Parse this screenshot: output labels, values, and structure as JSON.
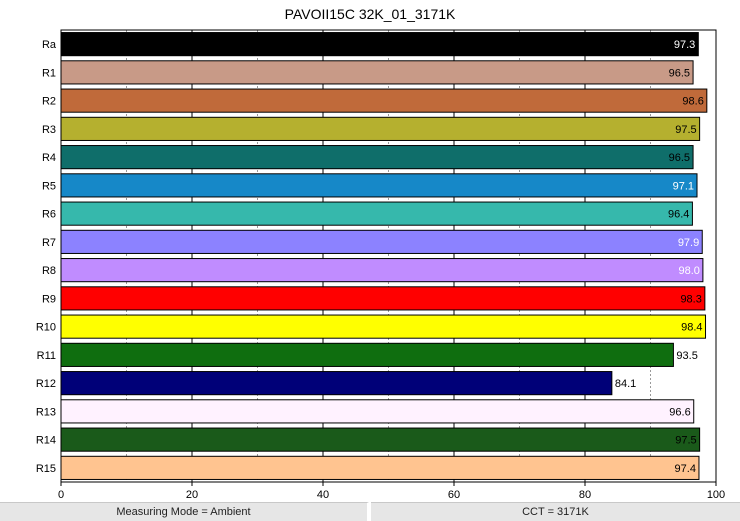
{
  "chart_data": {
    "type": "bar",
    "orientation": "horizontal",
    "title": "PAVOII15C 32K_01_3171K",
    "xlabel": "",
    "ylabel": "",
    "xlim": [
      0,
      100
    ],
    "x_ticks": [
      0,
      20,
      40,
      60,
      80,
      100
    ],
    "grid": "vertical",
    "categories": [
      "Ra",
      "R1",
      "R2",
      "R3",
      "R4",
      "R5",
      "R6",
      "R7",
      "R8",
      "R9",
      "R10",
      "R11",
      "R12",
      "R13",
      "R14",
      "R15"
    ],
    "values": [
      97.3,
      96.5,
      98.6,
      97.5,
      96.5,
      97.1,
      96.4,
      97.9,
      98.0,
      98.3,
      98.4,
      93.5,
      84.1,
      96.6,
      97.5,
      97.4
    ],
    "labels": [
      "97.3",
      "96.5",
      "98.6",
      "97.5",
      "96.5",
      "97.1",
      "96.4",
      "97.9",
      "98.0",
      "98.3",
      "98.4",
      "93.5",
      "84.1",
      "96.6",
      "97.5",
      "97.4"
    ],
    "colors": [
      "#000000",
      "#c89a87",
      "#c06a3a",
      "#b5b02f",
      "#0f6e6a",
      "#1688c8",
      "#36b8ac",
      "#8c82ff",
      "#c08cff",
      "#ff0000",
      "#ffff00",
      "#0f6e0f",
      "#000078",
      "#fff2ff",
      "#1a5a1a",
      "#ffc490"
    ],
    "label_colors": [
      "#ffffff",
      "#000000",
      "#000000",
      "#000000",
      "#000000",
      "#ffffff",
      "#000000",
      "#ffffff",
      "#ffffff",
      "#000000",
      "#000000",
      "#000000",
      "#000000",
      "#000000",
      "#000000",
      "#000000"
    ]
  },
  "status": {
    "measuring_mode": "Measuring Mode = Ambient",
    "cct": "CCT = 3171K"
  }
}
